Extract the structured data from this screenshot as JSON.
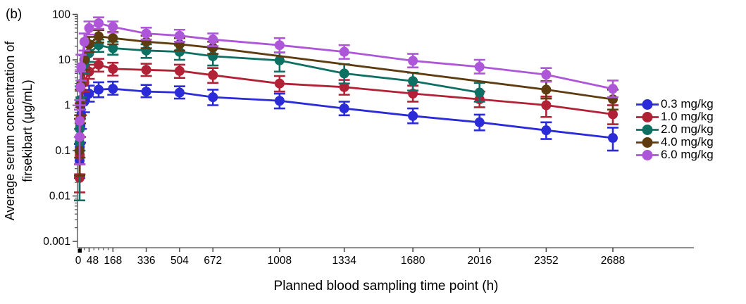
{
  "figure": {
    "panel_label": "(b)",
    "x_axis": {
      "title": "Planned blood sampling time point (h)",
      "major_ticks": [
        0,
        48,
        168,
        336,
        504,
        672,
        1008,
        1334,
        1680,
        2016,
        2352,
        2688
      ],
      "minor_ticks": [
        8,
        24,
        72,
        96,
        120,
        144
      ],
      "range": [
        0,
        2688
      ],
      "origin_marker": "black-square"
    },
    "y_axis": {
      "title_line1": "Average serum concentration of",
      "title_line2": "firsekibart (µg/mL)",
      "scale": "log",
      "range": [
        0.001,
        100
      ],
      "tick_labels": [
        "100",
        "10",
        "1",
        "0.1",
        "0.01",
        "0.001"
      ],
      "tick_values": [
        100,
        10,
        1,
        0.1,
        0.01,
        0.001
      ]
    }
  },
  "chart_data": {
    "type": "line",
    "title": "",
    "xlabel": "Planned blood sampling time point (h)",
    "ylabel": "Average serum concentration of firsekibart (µg/mL)",
    "y_scale": "log",
    "ylim": [
      0.001,
      100
    ],
    "xlim": [
      0,
      2688
    ],
    "grid": false,
    "legend_position": "right",
    "x": [
      0,
      1,
      4,
      8,
      24,
      48,
      96,
      168,
      336,
      504,
      672,
      1008,
      1334,
      1680,
      2016,
      2352,
      2688
    ],
    "series": [
      {
        "name": "0.3 mg/kg",
        "color": "#2b2bd8",
        "marker": "circle",
        "values": [
          0.06,
          0.12,
          0.35,
          0.6,
          1.2,
          1.8,
          2.2,
          2.3,
          2.0,
          1.9,
          1.5,
          1.25,
          0.85,
          0.58,
          0.42,
          0.28,
          0.19
        ],
        "lo": [
          0.025,
          0.05,
          0.15,
          0.3,
          0.7,
          1.2,
          1.5,
          1.7,
          1.5,
          1.4,
          1.0,
          0.85,
          0.6,
          0.4,
          0.28,
          0.18,
          0.1
        ],
        "hi": [
          0.14,
          0.3,
          0.8,
          1.2,
          2.0,
          2.7,
          3.2,
          3.3,
          2.8,
          2.6,
          2.2,
          1.8,
          1.2,
          0.85,
          0.62,
          0.42,
          0.32
        ]
      },
      {
        "name": "1.0 mg/kg",
        "color": "#b22237",
        "marker": "circle",
        "values": [
          0.025,
          0.08,
          0.5,
          1.2,
          3.2,
          5.5,
          7.8,
          6.3,
          6.0,
          5.7,
          4.6,
          3.0,
          2.5,
          1.8,
          1.35,
          1.0,
          0.63
        ],
        "lo": [
          0.012,
          0.03,
          0.2,
          0.6,
          2.0,
          3.8,
          5.5,
          4.5,
          4.4,
          4.0,
          3.1,
          2.0,
          1.7,
          1.2,
          0.9,
          0.55,
          0.38
        ],
        "hi": [
          0.05,
          0.2,
          1.1,
          2.2,
          5.0,
          7.8,
          10.5,
          8.6,
          8.2,
          7.8,
          6.6,
          4.4,
          3.6,
          2.7,
          2.0,
          1.55,
          1.0
        ]
      },
      {
        "name": "2.0 mg/kg",
        "color": "#0e6f63",
        "marker": "circle",
        "values": [
          0.15,
          0.3,
          1.3,
          3.0,
          8.0,
          14,
          21,
          18,
          16,
          15,
          12,
          9.7,
          5.0,
          3.4,
          1.9,
          null,
          null
        ],
        "lo": [
          0.008,
          0.1,
          0.5,
          1.5,
          5.0,
          9,
          15,
          13,
          11,
          10,
          7.5,
          5.5,
          3.0,
          2.1,
          1.2,
          null,
          null
        ],
        "hi": [
          0.8,
          0.8,
          2.6,
          5.5,
          12.5,
          20,
          28,
          25,
          22,
          21,
          17.5,
          14.5,
          8.0,
          5.2,
          3.1,
          null,
          null
        ]
      },
      {
        "name": "4.0 mg/kg",
        "color": "#5e3c10",
        "marker": "circle",
        "values": [
          0.1,
          0.2,
          1.0,
          2.8,
          10,
          22,
          33,
          30,
          25,
          22,
          18.5,
          null,
          null,
          null,
          null,
          2.2,
          1.35
        ],
        "lo": [
          0.028,
          0.07,
          0.4,
          1.3,
          6,
          15,
          24,
          22,
          18,
          16,
          13.5,
          null,
          null,
          null,
          null,
          1.4,
          0.8
        ],
        "hi": [
          0.5,
          0.6,
          2.2,
          5.5,
          16,
          32,
          45,
          41,
          34,
          30,
          25,
          null,
          null,
          null,
          null,
          3.4,
          2.2
        ]
      },
      {
        "name": "6.0 mg/kg",
        "color": "#ae56d8",
        "marker": "circle",
        "values": [
          0.2,
          0.45,
          2.5,
          7,
          25,
          50,
          64,
          53,
          38,
          34,
          28,
          21,
          15,
          9.5,
          7.0,
          4.7,
          2.3
        ],
        "lo": [
          0.05,
          0.2,
          1.0,
          3.5,
          16,
          36,
          48,
          40,
          28,
          25,
          20,
          14.5,
          10.5,
          6.8,
          5.0,
          3.3,
          1.5
        ],
        "hi": [
          0.8,
          1.3,
          5.5,
          13,
          38,
          70,
          86,
          70,
          51,
          46,
          38,
          30,
          21,
          13.5,
          10,
          6.6,
          3.5
        ]
      }
    ],
    "legend": [
      {
        "label": "0.3 mg/kg",
        "color": "#2b2bd8"
      },
      {
        "label": "1.0 mg/kg",
        "color": "#b22237"
      },
      {
        "label": "2.0 mg/kg",
        "color": "#0e6f63"
      },
      {
        "label": "4.0 mg/kg",
        "color": "#5e3c10"
      },
      {
        "label": "6.0 mg/kg",
        "color": "#ae56d8"
      }
    ]
  }
}
